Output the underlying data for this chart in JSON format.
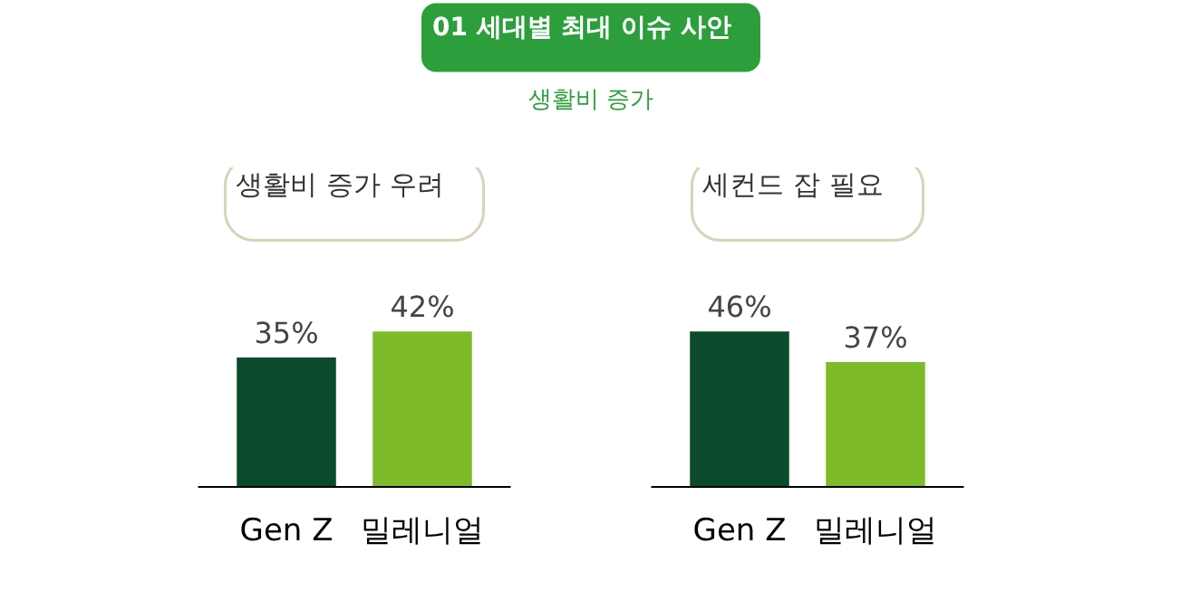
{
  "chart_data": [
    {
      "type": "other",
      "title": "01 세대별 최대 이슈 사안",
      "subtitle": "생활비 증가"
    },
    {
      "type": "bar",
      "title": "생활비 증가 우려",
      "categories": [
        "Gen Z",
        "밀레니얼"
      ],
      "values": [
        35,
        42
      ],
      "colors": [
        "#0b4a2b",
        "#7dbb2a"
      ],
      "value_labels": [
        "35%",
        "42%"
      ]
    },
    {
      "type": "bar",
      "title": "세컨드 잡 필요",
      "categories": [
        "Gen Z",
        "밀레니얼"
      ],
      "values": [
        46,
        37
      ],
      "colors": [
        "#0b4a2b",
        "#7dbb2a"
      ],
      "value_labels": [
        "46%",
        "37%"
      ]
    }
  ]
}
